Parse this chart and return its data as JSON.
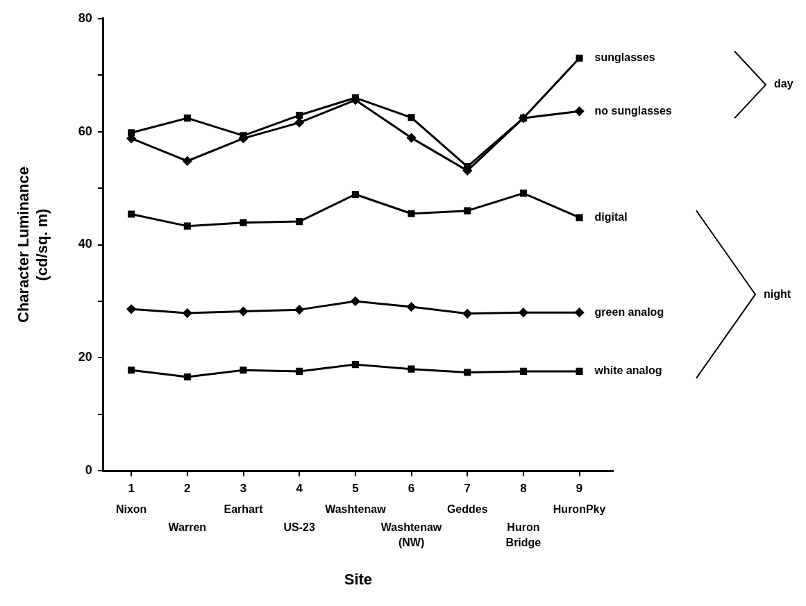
{
  "chart_data": {
    "type": "line",
    "xlabel": "Site",
    "ylabel": "Character Luminance\n(cd/sq. m)",
    "x": [
      1,
      2,
      3,
      4,
      5,
      6,
      7,
      8,
      9
    ],
    "xlim": [
      0.5,
      9.6
    ],
    "xticks": [
      1,
      2,
      3,
      4,
      5,
      6,
      7,
      8,
      9
    ],
    "ylim": [
      0,
      80
    ],
    "yticks": [
      0,
      {
        "value": 10,
        "label": null
      },
      20,
      {
        "value": 30,
        "label": null
      },
      40,
      {
        "value": 50,
        "label": null
      },
      60,
      {
        "value": 70,
        "label": null
      },
      80
    ],
    "grid": false,
    "legend": false,
    "series": [
      {
        "name": "sunglasses",
        "color": "#000000",
        "marker": "square",
        "values": [
          59.8,
          62.4,
          59.3,
          62.9,
          66,
          62.5,
          53.8,
          62.4,
          73
        ]
      },
      {
        "name": "no sunglasses",
        "color": "#000000",
        "marker": "diamond",
        "values": [
          58.8,
          54.8,
          58.8,
          61.6,
          65.6,
          58.9,
          53.1,
          62.4,
          63.6
        ]
      },
      {
        "name": "digital",
        "color": "#000000",
        "marker": "square",
        "values": [
          45.4,
          43.3,
          43.9,
          44.1,
          48.9,
          45.5,
          46,
          49.1,
          44.8
        ]
      },
      {
        "name": "green analog",
        "color": "#000000",
        "marker": "diamond",
        "values": [
          28.6,
          27.9,
          28.2,
          28.5,
          30,
          29,
          27.8,
          28,
          28
        ]
      },
      {
        "name": "white analog",
        "color": "#000000",
        "marker": "square",
        "values": [
          17.8,
          16.6,
          17.8,
          17.6,
          18.8,
          18,
          17.4,
          17.6,
          17.6
        ]
      }
    ],
    "annotations": [
      "Nixon",
      "Warren",
      "Earhart",
      "US-23",
      "Washtenaw",
      "Washtenaw\n(NW)",
      "Geddes",
      "Huron\nBridge",
      "HuronPky",
      "day",
      "night"
    ]
  }
}
